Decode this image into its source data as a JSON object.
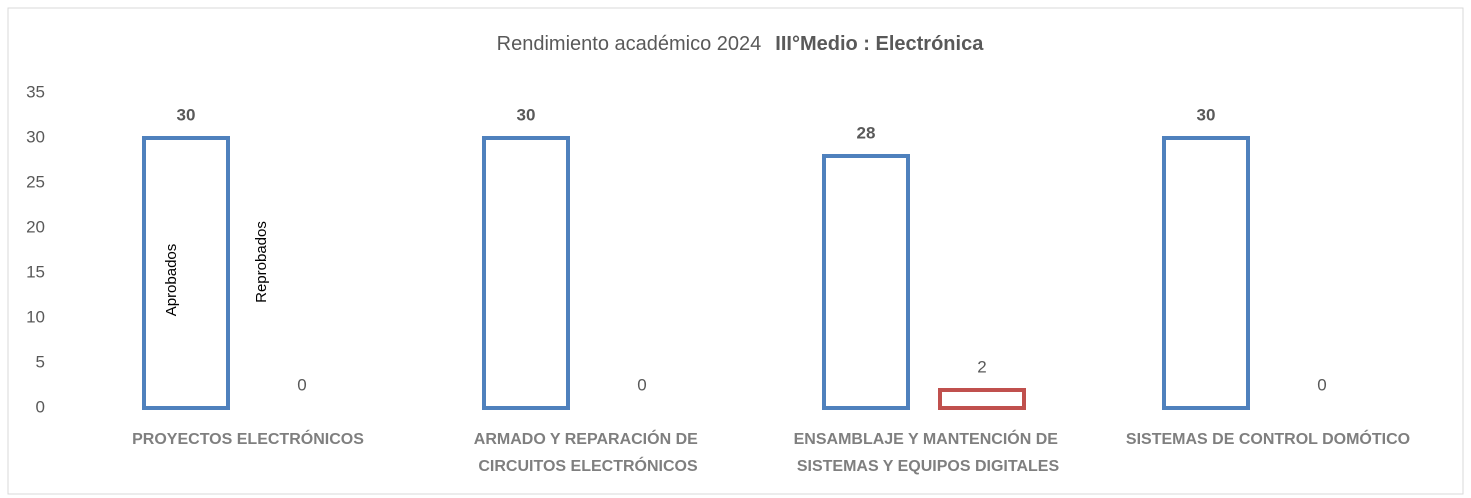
{
  "chart_data": {
    "type": "bar",
    "title": "Rendimiento académico 2024",
    "title_bold": "III°Medio :  Electrónica",
    "categories": [
      "PROYECTOS ELECTRÓNICOS",
      "ARMADO Y REPARACIÓN DE CIRCUITOS ELECTRÓNICOS",
      "ENSAMBLAJE Y MANTENCIÓN DE SISTEMAS Y EQUIPOS DIGITALES",
      "SISTEMAS DE CONTROL DOMÓTICO"
    ],
    "series": [
      {
        "name": "Aprobados",
        "color": "#4f81bd",
        "values": [
          30,
          30,
          28,
          30
        ]
      },
      {
        "name": "Reprobados",
        "color": "#c0504d",
        "values": [
          0,
          0,
          2,
          0
        ]
      }
    ],
    "ylim": [
      0,
      35
    ],
    "yticks": [
      0,
      5,
      10,
      15,
      20,
      25,
      30,
      35
    ],
    "grid": false
  }
}
